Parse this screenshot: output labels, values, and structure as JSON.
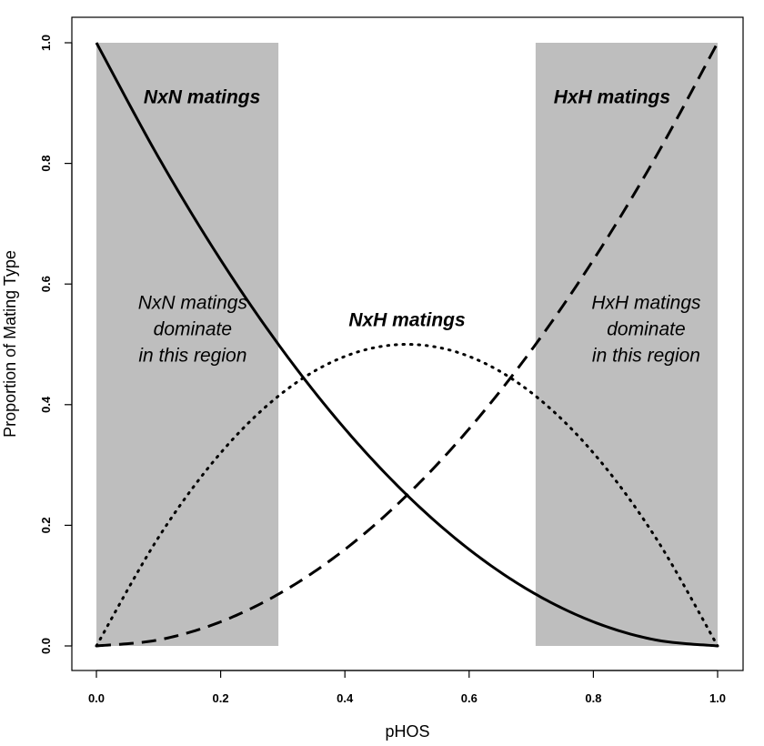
{
  "chart_data": {
    "type": "line",
    "xlabel": "pHOS",
    "ylabel": "Proportion of Mating Type",
    "xlim": [
      0,
      1
    ],
    "ylim": [
      0,
      1
    ],
    "x_ticks": [
      "0.0",
      "0.2",
      "0.4",
      "0.6",
      "0.8",
      "1.0"
    ],
    "y_ticks": [
      "0.0",
      "0.2",
      "0.4",
      "0.6",
      "0.8",
      "1.0"
    ],
    "grid": false,
    "x": [
      0.0,
      0.1,
      0.2,
      0.3,
      0.4,
      0.5,
      0.6,
      0.7,
      0.8,
      0.9,
      1.0
    ],
    "series": [
      {
        "name": "NxN matings",
        "line_style": "solid",
        "values": [
          1.0,
          0.81,
          0.64,
          0.49,
          0.36,
          0.25,
          0.16,
          0.09,
          0.04,
          0.01,
          0.0
        ]
      },
      {
        "name": "NxH matings",
        "line_style": "dotted",
        "values": [
          0.0,
          0.18,
          0.32,
          0.42,
          0.48,
          0.5,
          0.48,
          0.42,
          0.32,
          0.18,
          0.0
        ]
      },
      {
        "name": "HxH matings",
        "line_style": "dashed",
        "values": [
          0.0,
          0.01,
          0.04,
          0.09,
          0.16,
          0.25,
          0.36,
          0.49,
          0.64,
          0.81,
          1.0
        ]
      }
    ],
    "shaded_regions": [
      {
        "x_range": [
          0.0,
          0.293
        ],
        "y_range": [
          0,
          1
        ],
        "color": "#bebebe"
      },
      {
        "x_range": [
          0.707,
          1.0
        ],
        "y_range": [
          0,
          1
        ],
        "color": "#bebebe"
      }
    ],
    "annotations": [
      {
        "id": "nxn_title",
        "text": "NxN matings",
        "x": 0.17,
        "y": 0.9,
        "style": "bold-italic"
      },
      {
        "id": "hxh_title",
        "text": "HxH matings",
        "x": 0.83,
        "y": 0.9,
        "style": "bold-italic"
      },
      {
        "id": "nxh_title",
        "text": "NxH matings",
        "x": 0.5,
        "y": 0.53,
        "style": "bold-italic"
      },
      {
        "id": "nxn_region",
        "lines": [
          "NxN matings",
          "dominate",
          "in this region"
        ],
        "x": 0.155,
        "y": 0.515,
        "style": "italic"
      },
      {
        "id": "hxh_region",
        "lines": [
          "HxH matings",
          "dominate",
          "in this region"
        ],
        "x": 0.885,
        "y": 0.515,
        "style": "italic"
      }
    ]
  }
}
